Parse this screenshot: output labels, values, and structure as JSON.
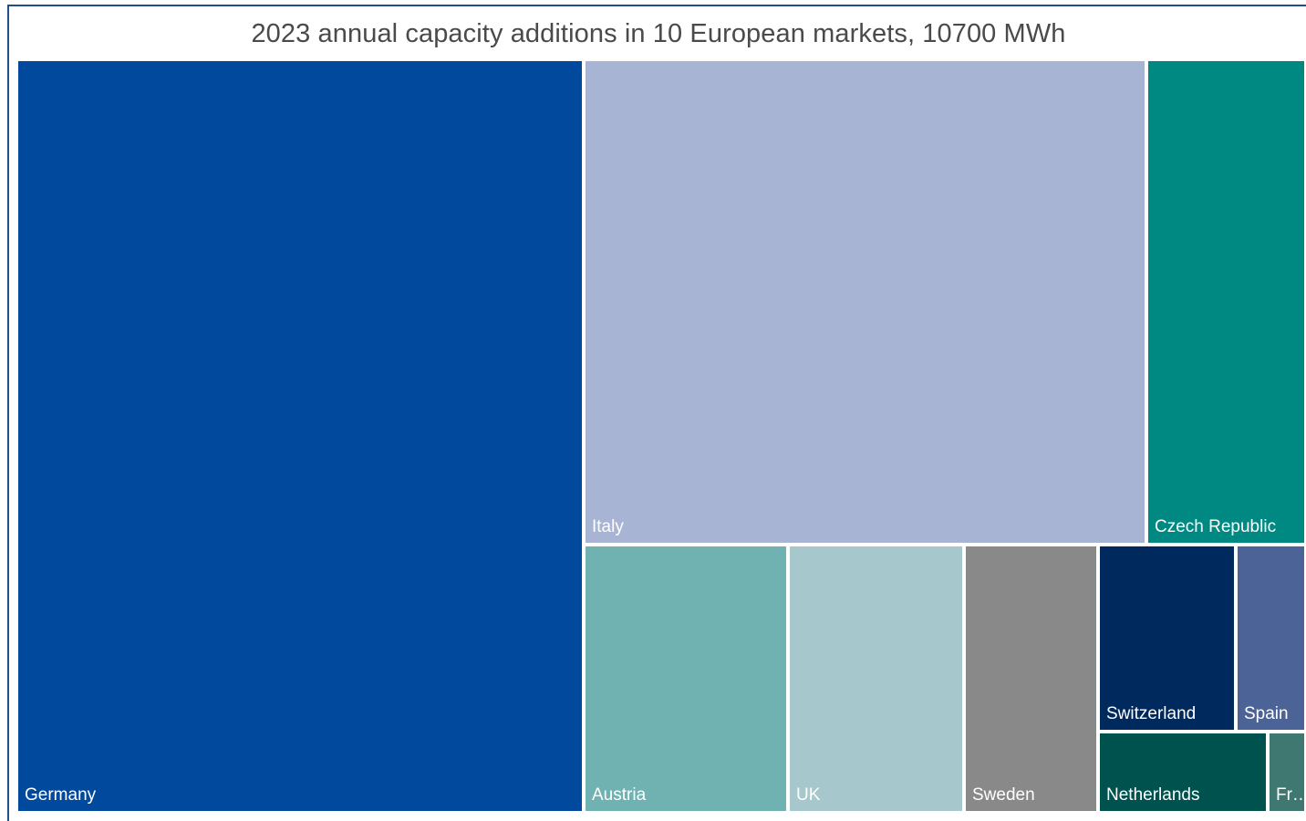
{
  "chart_data": {
    "type": "treemap",
    "title": "2023 annual capacity additions in 10 European markets, 10700 MWh",
    "tiles": [
      {
        "label": "Germany",
        "color": "#00499c"
      },
      {
        "label": "Italy",
        "color": "#a7b4d3"
      },
      {
        "label": "Czech Republic",
        "color": "#008983"
      },
      {
        "label": "Austria",
        "color": "#70b2b2"
      },
      {
        "label": "UK",
        "color": "#a6c8cc"
      },
      {
        "label": "Sweden",
        "color": "#898989"
      },
      {
        "label": "Switzerland",
        "color": "#00295d"
      },
      {
        "label": "Spain",
        "color": "#4c6397"
      },
      {
        "label": "Netherlands",
        "color": "#00524f"
      },
      {
        "label": "Fr…",
        "color": "#3f7871"
      }
    ]
  }
}
